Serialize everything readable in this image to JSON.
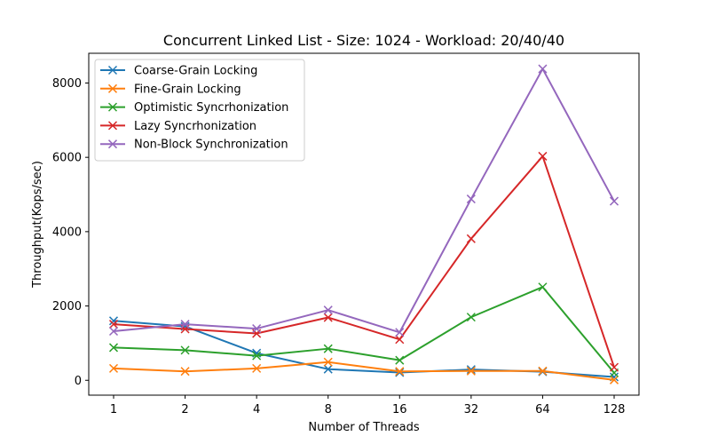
{
  "chart_data": {
    "type": "line",
    "title": "Concurrent Linked List - Size: 1024 - Workload: 20/40/40",
    "xlabel": "Number of Threads",
    "ylabel": "Throughput(Kops/sec)",
    "categories": [
      "1",
      "2",
      "4",
      "8",
      "16",
      "32",
      "64",
      "128"
    ],
    "ylim": [
      -400,
      8800
    ],
    "yticks": [
      0,
      2000,
      4000,
      6000,
      8000
    ],
    "grid": false,
    "legend_position": "top-left",
    "marker": "x",
    "series": [
      {
        "name": "Coarse-Grain Locking",
        "color": "#1f77b4",
        "values": [
          1600,
          1450,
          730,
          300,
          210,
          290,
          230,
          90
        ]
      },
      {
        "name": "Fine-Grain Locking",
        "color": "#ff7f0e",
        "values": [
          320,
          240,
          320,
          490,
          240,
          250,
          250,
          10
        ]
      },
      {
        "name": "Optimistic Syncrhonization",
        "color": "#2ca02c",
        "values": [
          880,
          810,
          660,
          850,
          540,
          1700,
          2510,
          200
        ]
      },
      {
        "name": "Lazy Syncrhonization",
        "color": "#d62728",
        "values": [
          1510,
          1380,
          1260,
          1690,
          1100,
          3810,
          6030,
          350
        ]
      },
      {
        "name": "Non-Block Synchronization",
        "color": "#9467bd",
        "values": [
          1320,
          1510,
          1390,
          1890,
          1290,
          4880,
          8380,
          4820
        ]
      }
    ]
  }
}
